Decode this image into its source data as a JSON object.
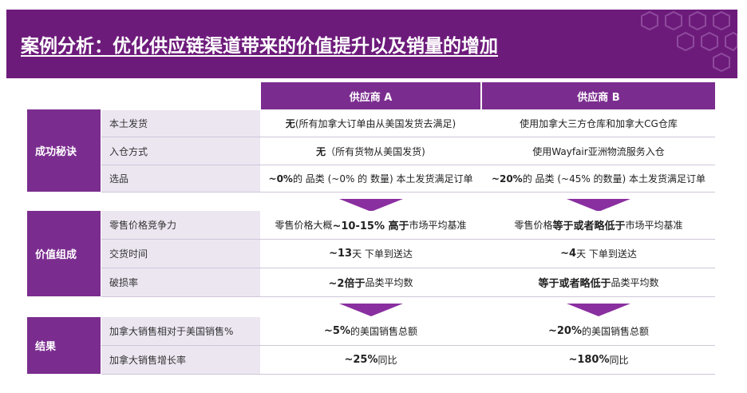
{
  "title": "案例分析：优化供应链渠道带来的价值提升以及销量的增加",
  "colors": {
    "banner": "#6d1b7b",
    "header": "#7b2d8f",
    "label_bg": "#ece6f1",
    "arrow": "#8a2fa0"
  },
  "columns": {
    "a": "供应商 A",
    "b": "供应商 B"
  },
  "groups": {
    "g1": {
      "name": "成功秘诀",
      "rows": [
        {
          "label": "本土发货",
          "a": {
            "bold": "无",
            "rest": " (所有加拿大订单由从美国发货去满足)"
          },
          "b": {
            "bold": "",
            "rest": "使用加拿大三方仓库和加拿大CG仓库"
          }
        },
        {
          "label": "入仓方式",
          "a": {
            "bold": "无",
            "rest": " （所有货物从美国发货)"
          },
          "b": {
            "bold": "",
            "rest": "使用Wayfair亚洲物流服务入仓"
          }
        },
        {
          "label": "选品",
          "a": {
            "bold": "~0%",
            "rest": " 的 品类 (~0% 的 数量) 本土发货满足订单"
          },
          "b": {
            "bold": "~20%",
            "rest": " 的 品类 (~45% 的数量) 本土发货满足订单"
          }
        }
      ]
    },
    "g2": {
      "name": "价值组成",
      "rows": [
        {
          "label": "零售价格竞争力",
          "a": {
            "pre": "零售价格大概 ",
            "bold": "~10-15% 高于",
            "rest": " 市场平均基准"
          },
          "b": {
            "pre": "零售价格 ",
            "bold": "等于或者略低于",
            "rest": " 市场平均基准"
          }
        },
        {
          "label": "交货时间",
          "a": {
            "pre": "",
            "bold": "~13",
            "rest": " 天 下单到送达"
          },
          "b": {
            "pre": "",
            "bold": "~4",
            "rest": " 天 下单到送达"
          }
        },
        {
          "label": "破损率",
          "a": {
            "pre": "",
            "bold": "~2倍于",
            "rest": " 品类平均数"
          },
          "b": {
            "pre": "",
            "bold": "等于或者略低于",
            "rest": " 品类平均数"
          }
        }
      ]
    },
    "g3": {
      "name": "结果",
      "rows": [
        {
          "label": "加拿大销售相对于美国销售%",
          "a": {
            "bold": "~5%",
            "rest": " 的美国销售总额"
          },
          "b": {
            "bold": "~20%",
            "rest": " 的美国销售总额"
          }
        },
        {
          "label": "加拿大销售增长率",
          "a": {
            "bold": "~25%",
            "rest": " 同比"
          },
          "b": {
            "bold": "~180%",
            "rest": " 同比"
          }
        }
      ]
    }
  }
}
